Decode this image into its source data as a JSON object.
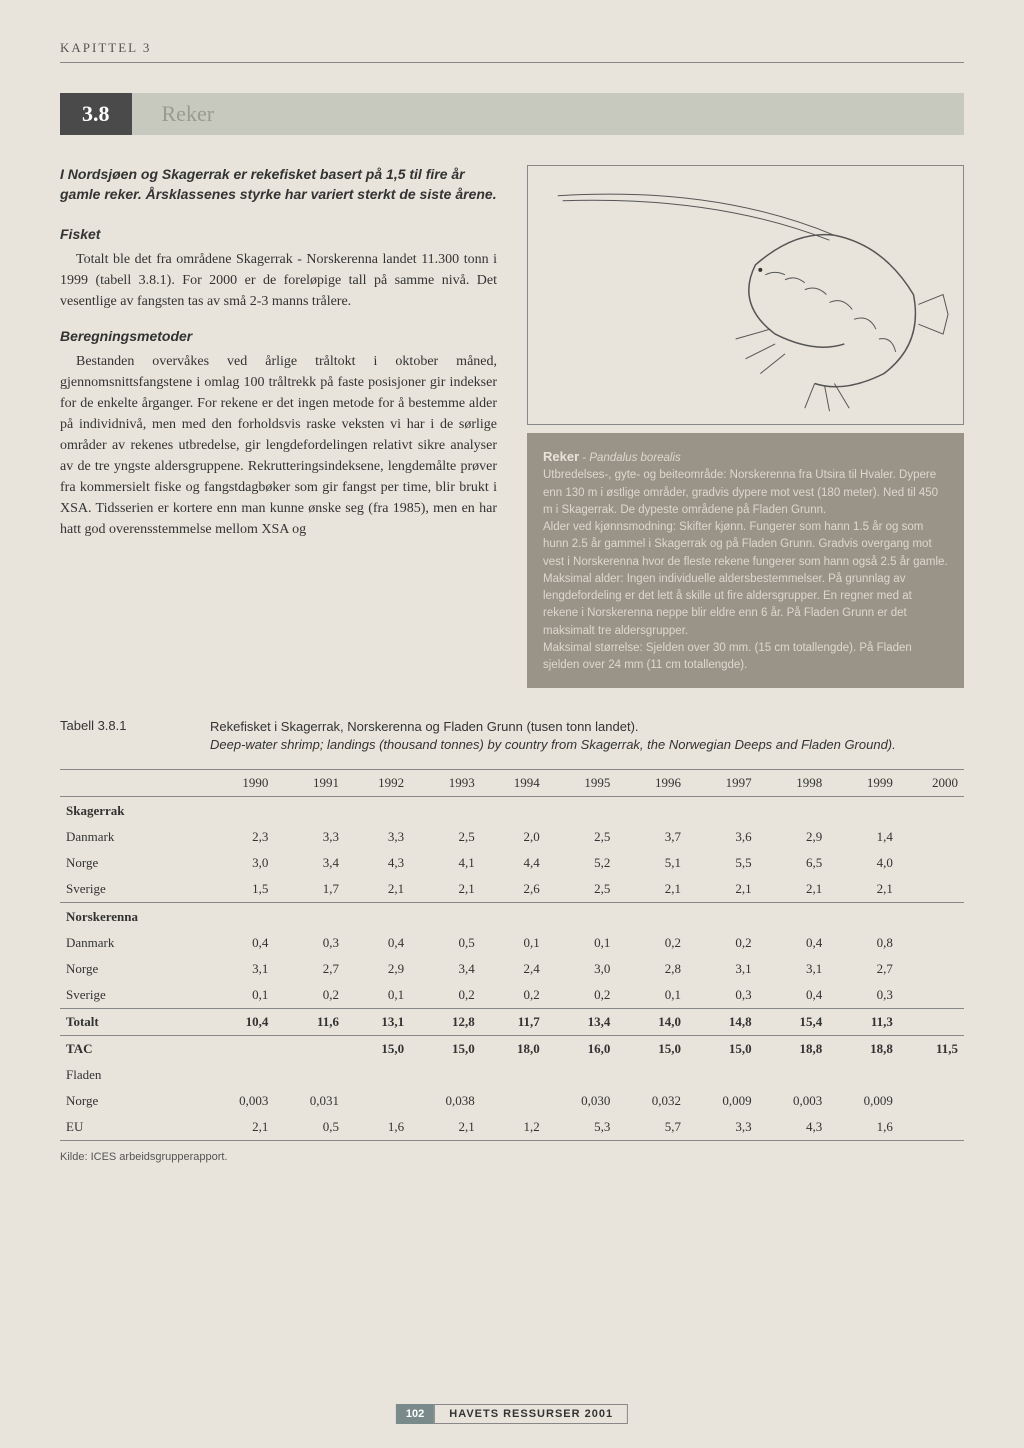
{
  "chapter": "KAPITTEL 3",
  "section": {
    "num": "3.8",
    "title": "Reker"
  },
  "intro": "I Nordsjøen og Skagerrak er rekefisket basert på 1,5 til fire år gamle reker. Årsklassenes styrke har variert sterkt de siste årene.",
  "fisket": {
    "heading": "Fisket",
    "text": "Totalt ble det fra områdene Skagerrak - Norskerenna landet 11.300 tonn i 1999 (tabell 3.8.1). For 2000 er de foreløpige tall på samme nivå. Det vesentlige av fangsten tas av små 2-3 manns trålere."
  },
  "bereg": {
    "heading": "Beregningsmetoder",
    "text": "Bestanden overvåkes ved årlige tråltokt i oktober måned, gjennomsnittsfangstene i omlag 100 tråltrekk på faste posisjoner gir indekser for de enkelte årganger. For rekene er det ingen metode for å bestemme alder på individnivå, men med den forholdsvis raske veksten vi har i de sørlige områder av rekenes utbredelse, gir lengdefordelingen relativt sikre analyser av de tre yngste aldersgruppene. Rekrutteringsindeksene, lengdemålte prøver fra kommersielt fiske og fangstdagbøker som gir fangst per time, blir brukt i XSA. Tidsserien er kortere enn man kunne ønske seg (fra 1985), men en har hatt god overensstemmelse mellom XSA og"
  },
  "infobox": {
    "title": "Reker",
    "species": "Pandalus borealis",
    "lines": [
      "Utbredelses-, gyte- og beiteområde: Norskerenna fra Utsira til Hvaler. Dypere enn 130 m i østlige områder, gradvis dypere mot vest (180 meter). Ned til 450 m i Skagerrak. De dypeste områdene på Fladen Grunn.",
      "Alder ved kjønnsmodning: Skifter kjønn. Fungerer som hann 1.5 år og som hunn 2.5 år gammel i Skagerrak og på Fladen Grunn. Gradvis overgang mot vest i Norskerenna hvor de fleste rekene fungerer som hann også 2.5 år gamle.",
      "Maksimal alder: Ingen individuelle aldersbestemmelser. På grunnlag av lengdefordeling er det lett å skille ut fire aldersgrupper. En regner med at rekene i Norskerenna neppe blir eldre enn 6 år. På Fladen Grunn er det maksimalt tre aldersgrupper.",
      "Maksimal størrelse: Sjelden over 30 mm. (15 cm totallengde). På Fladen sjelden over 24 mm (11 cm totallengde)."
    ]
  },
  "table": {
    "label": "Tabell 3.8.1",
    "caption_main": "Rekefisket i Skagerrak, Norskerenna og Fladen Grunn (tusen tonn landet).",
    "caption_sub": "Deep-water shrimp; landings (thousand tonnes) by country from Skagerrak, the Norwegian Deeps and Fladen Ground).",
    "years": [
      "1990",
      "1991",
      "1992",
      "1993",
      "1994",
      "1995",
      "1996",
      "1997",
      "1998",
      "1999",
      "2000"
    ],
    "sections": [
      {
        "region": "Skagerrak",
        "rows": [
          {
            "label": "Danmark",
            "vals": [
              "2,3",
              "3,3",
              "3,3",
              "2,5",
              "2,0",
              "2,5",
              "3,7",
              "3,6",
              "2,9",
              "1,4",
              ""
            ]
          },
          {
            "label": "Norge",
            "vals": [
              "3,0",
              "3,4",
              "4,3",
              "4,1",
              "4,4",
              "5,2",
              "5,1",
              "5,5",
              "6,5",
              "4,0",
              ""
            ]
          },
          {
            "label": "Sverige",
            "vals": [
              "1,5",
              "1,7",
              "2,1",
              "2,1",
              "2,6",
              "2,5",
              "2,1",
              "2,1",
              "2,1",
              "2,1",
              ""
            ]
          }
        ]
      },
      {
        "region": "Norskerenna",
        "rows": [
          {
            "label": "Danmark",
            "vals": [
              "0,4",
              "0,3",
              "0,4",
              "0,5",
              "0,1",
              "0,1",
              "0,2",
              "0,2",
              "0,4",
              "0,8",
              ""
            ]
          },
          {
            "label": "Norge",
            "vals": [
              "3,1",
              "2,7",
              "2,9",
              "3,4",
              "2,4",
              "3,0",
              "2,8",
              "3,1",
              "3,1",
              "2,7",
              ""
            ]
          },
          {
            "label": "Sverige",
            "vals": [
              "0,1",
              "0,2",
              "0,1",
              "0,2",
              "0,2",
              "0,2",
              "0,1",
              "0,3",
              "0,4",
              "0,3",
              ""
            ]
          }
        ]
      }
    ],
    "totalt": {
      "label": "Totalt",
      "vals": [
        "10,4",
        "11,6",
        "13,1",
        "12,8",
        "11,7",
        "13,4",
        "14,0",
        "14,8",
        "15,4",
        "11,3",
        ""
      ]
    },
    "tac": {
      "label": "TAC",
      "vals": [
        "",
        "",
        "15,0",
        "15,0",
        "18,0",
        "16,0",
        "15,0",
        "15,0",
        "18,8",
        "18,8",
        "11,5"
      ]
    },
    "fladen": {
      "label": "Fladen",
      "rows": [
        {
          "label": "Norge",
          "vals": [
            "0,003",
            "0,031",
            "",
            "0,038",
            "",
            "0,030",
            "0,032",
            "0,009",
            "0,003",
            "0,009",
            ""
          ]
        },
        {
          "label": "EU",
          "vals": [
            "2,1",
            "0,5",
            "1,6",
            "2,1",
            "1,2",
            "5,3",
            "5,7",
            "3,3",
            "4,3",
            "1,6",
            ""
          ]
        }
      ]
    },
    "source": "Kilde: ICES arbeidsgrupperapport."
  },
  "footer": {
    "page": "102",
    "text": "HAVETS RESSURSER 2001"
  },
  "colors": {
    "page_bg": "#e8e4db",
    "dark_box": "#4a4a4a",
    "banner_bg": "#c7c9bf",
    "info_bg": "#9a9488",
    "rule": "#888888"
  }
}
